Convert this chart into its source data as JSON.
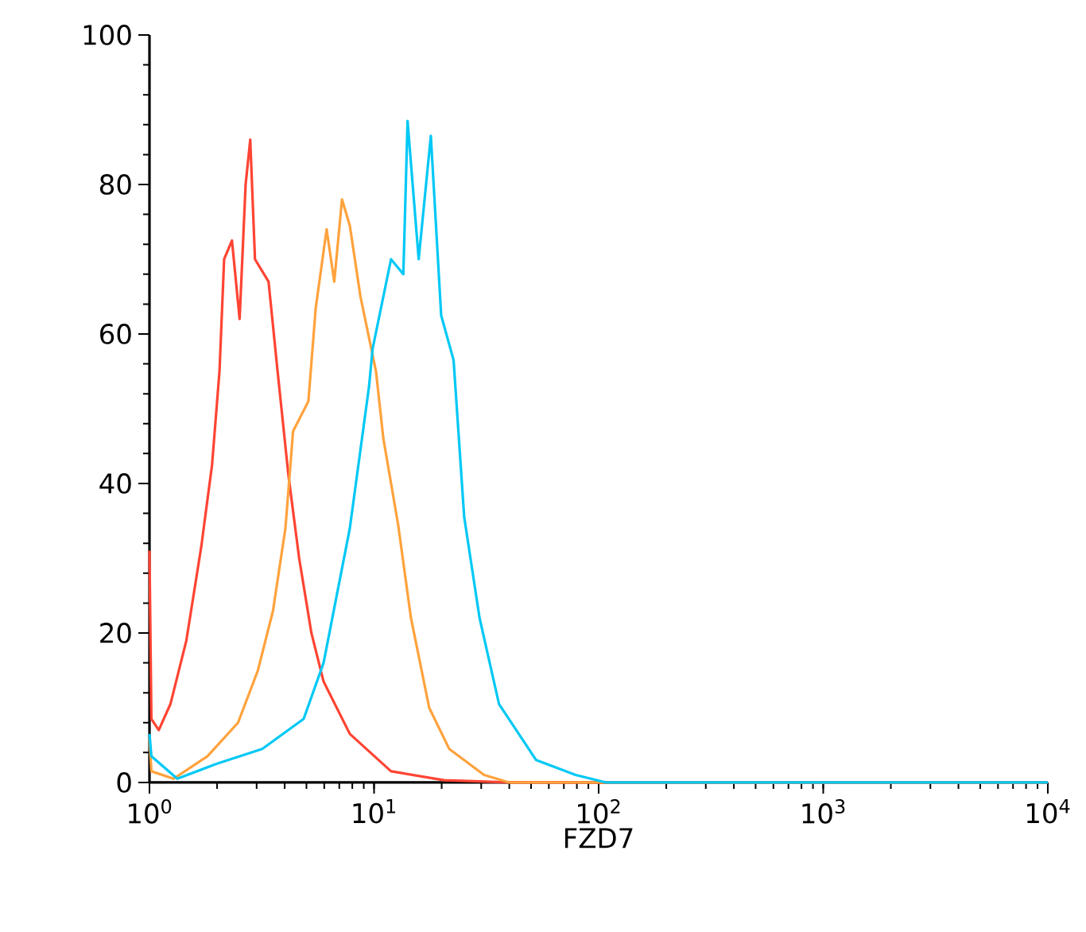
{
  "chart_data": {
    "type": "line",
    "xlabel": "FZD7",
    "log": "x",
    "xlim": [
      1,
      10000
    ],
    "ylim": [
      0,
      100
    ],
    "xticks": [
      {
        "value": 1,
        "label": "10$^{0}$"
      },
      {
        "value": 10,
        "label": "10$^{1}$"
      },
      {
        "value": 100,
        "label": "10$^{2}$"
      },
      {
        "value": 1000,
        "label": "10$^{3}$"
      },
      {
        "value": 10000,
        "label": "10$^{4}$"
      }
    ],
    "yticks": [
      0,
      20,
      40,
      60,
      80,
      100
    ],
    "marker": "none",
    "line_style": "solid",
    "series": [
      {
        "color": "#ff4433",
        "x": [
          1.0,
          1.02,
          1.1,
          1.24,
          1.46,
          1.7,
          1.9,
          2.05,
          2.15,
          2.33,
          2.52,
          2.68,
          2.81,
          2.95,
          3.39,
          3.72,
          4.16,
          4.64,
          5.26,
          5.96,
          7.8,
          11.9,
          20.5,
          40,
          10000
        ],
        "values": [
          31,
          8.5,
          7,
          10.5,
          19,
          31.5,
          42.5,
          55,
          70,
          72.5,
          62,
          80,
          86,
          70,
          67,
          55,
          41,
          30,
          20,
          13.5,
          6.5,
          1.5,
          0.3,
          0,
          0
        ]
      },
      {
        "color": "#ffa23c",
        "x": [
          1.0,
          1.02,
          1.28,
          1.81,
          2.48,
          3.04,
          3.55,
          4.03,
          4.36,
          5.1,
          5.5,
          6.15,
          6.65,
          7.2,
          7.8,
          8.7,
          10.2,
          11,
          12.8,
          14.6,
          17.6,
          21.6,
          30.9,
          40,
          10000
        ],
        "values": [
          6,
          1.5,
          0.5,
          3.5,
          8,
          15,
          23,
          34,
          47,
          51,
          63.5,
          74,
          67,
          78,
          74.5,
          65,
          55,
          46,
          34.5,
          22,
          10,
          4.5,
          1,
          0,
          0
        ]
      },
      {
        "color": "#00c8f5",
        "x": [
          1.0,
          1.02,
          1.33,
          1.99,
          3.18,
          4.86,
          5.96,
          7.8,
          9.5,
          9.85,
          11.9,
          13.5,
          14.1,
          15.8,
          17.9,
          19.9,
          22.6,
          25.2,
          29.5,
          36,
          52.7,
          79,
          108,
          10000
        ],
        "values": [
          6.5,
          3.5,
          0.5,
          2.5,
          4.5,
          8.5,
          16,
          34,
          53,
          58,
          70,
          68,
          88.5,
          70,
          86.5,
          62.5,
          56.5,
          35.5,
          22,
          10.5,
          3,
          1,
          0,
          0
        ]
      }
    ]
  }
}
